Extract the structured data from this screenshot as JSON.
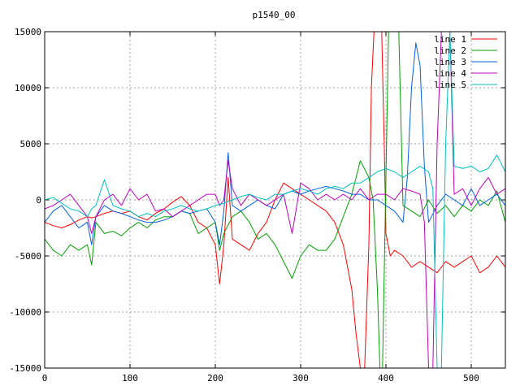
{
  "chart_data": {
    "type": "line",
    "title": "p1540_00",
    "xlabel": "",
    "ylabel": "",
    "xlim": [
      0,
      540
    ],
    "ylim": [
      -15000,
      15000
    ],
    "xticks": [
      0,
      100,
      200,
      300,
      400,
      500
    ],
    "yticks": [
      -15000,
      -10000,
      -5000,
      0,
      5000,
      10000,
      15000
    ],
    "grid": true,
    "legend_position": "top-right",
    "series": [
      {
        "name": "line 1",
        "color": "#ff0000",
        "x": [
          0,
          10,
          20,
          30,
          40,
          50,
          55,
          60,
          70,
          80,
          90,
          100,
          110,
          120,
          130,
          140,
          150,
          160,
          170,
          180,
          190,
          200,
          205,
          210,
          215,
          220,
          230,
          240,
          250,
          260,
          270,
          280,
          290,
          300,
          310,
          320,
          330,
          340,
          350,
          355,
          360,
          365,
          370,
          375,
          380,
          383,
          386,
          390,
          395,
          398,
          400,
          405,
          410,
          420,
          430,
          440,
          450,
          460,
          470,
          480,
          490,
          500,
          510,
          520,
          530,
          540
        ],
        "y": [
          -2000,
          -2300,
          -2500,
          -2200,
          -1800,
          -1500,
          -1600,
          -1500,
          -1200,
          -1000,
          -1200,
          -1000,
          -1500,
          -1800,
          -1200,
          -800,
          -200,
          300,
          -500,
          -2000,
          -2500,
          -4000,
          -7500,
          -4000,
          2000,
          -3500,
          -4000,
          -4500,
          -3000,
          -2000,
          0,
          1500,
          1000,
          500,
          0,
          -500,
          -1000,
          -2000,
          -4000,
          -6000,
          -8000,
          -12000,
          -15000,
          -15000,
          -4000,
          10000,
          15000,
          15000,
          15000,
          5000,
          -3000,
          -5000,
          -4500,
          -5000,
          -6000,
          -5500,
          -6000,
          -6500,
          -5500,
          -6000,
          -5500,
          -5000,
          -6500,
          -6000,
          -5000,
          -6000
        ]
      },
      {
        "name": "line 2",
        "color": "#00a000",
        "x": [
          0,
          10,
          20,
          30,
          40,
          50,
          55,
          60,
          70,
          80,
          90,
          100,
          110,
          120,
          130,
          140,
          150,
          160,
          170,
          180,
          190,
          200,
          205,
          210,
          220,
          230,
          240,
          250,
          260,
          270,
          280,
          290,
          300,
          310,
          320,
          330,
          340,
          350,
          360,
          370,
          380,
          385,
          390,
          393,
          396,
          400,
          403,
          406,
          410,
          415,
          420,
          430,
          440,
          450,
          460,
          470,
          480,
          490,
          500,
          510,
          520,
          530,
          540
        ],
        "y": [
          -3500,
          -4500,
          -5000,
          -4000,
          -4500,
          -4000,
          -5800,
          -2000,
          -3000,
          -2800,
          -3200,
          -2500,
          -2000,
          -2500,
          -1800,
          -1500,
          -1500,
          -1000,
          -1200,
          -3000,
          -2500,
          -2000,
          -4500,
          -3000,
          -1500,
          -1000,
          -2000,
          -3500,
          -3000,
          -4000,
          -5500,
          -7000,
          -5000,
          -4000,
          -4500,
          -4500,
          -3500,
          -1500,
          500,
          3500,
          2000,
          0,
          -8000,
          -15000,
          -15000,
          2000,
          15000,
          15000,
          15000,
          15000,
          -500,
          -1000,
          -1500,
          0,
          -1200,
          -500,
          -1500,
          -500,
          -1000,
          0,
          -500,
          800,
          -2000
        ]
      },
      {
        "name": "line 3",
        "color": "#0060e0",
        "x": [
          0,
          10,
          20,
          30,
          40,
          50,
          55,
          60,
          70,
          80,
          90,
          100,
          110,
          120,
          130,
          140,
          150,
          160,
          170,
          180,
          190,
          200,
          205,
          210,
          215,
          220,
          230,
          240,
          250,
          260,
          270,
          280,
          290,
          300,
          310,
          320,
          330,
          340,
          350,
          360,
          370,
          380,
          390,
          400,
          410,
          415,
          420,
          425,
          430,
          435,
          440,
          445,
          450,
          460,
          470,
          480,
          490,
          500,
          510,
          520,
          530,
          540
        ],
        "y": [
          -2000,
          -1000,
          -500,
          -1500,
          -2500,
          -2000,
          -4000,
          -1500,
          -500,
          -1000,
          -1200,
          -1500,
          -1800,
          -2000,
          -2000,
          -1800,
          -1500,
          -1000,
          -1200,
          -1000,
          -800,
          -2000,
          -4000,
          -1000,
          4200,
          -500,
          -1000,
          -500,
          0,
          -500,
          -800,
          500,
          800,
          500,
          800,
          1000,
          1200,
          1000,
          800,
          500,
          500,
          0,
          0,
          -500,
          -1000,
          -1500,
          -2000,
          2000,
          10000,
          14000,
          12000,
          3000,
          -2000,
          -500,
          500,
          0,
          -500,
          1000,
          -500,
          0,
          500,
          -500
        ]
      },
      {
        "name": "line 4",
        "color": "#c000c0",
        "x": [
          0,
          10,
          20,
          30,
          40,
          50,
          55,
          60,
          70,
          80,
          90,
          100,
          110,
          120,
          130,
          140,
          150,
          160,
          170,
          180,
          190,
          200,
          205,
          210,
          215,
          220,
          230,
          240,
          250,
          260,
          270,
          280,
          290,
          300,
          310,
          320,
          330,
          340,
          350,
          360,
          370,
          380,
          390,
          400,
          410,
          420,
          430,
          440,
          445,
          450,
          455,
          460,
          465,
          470,
          475,
          480,
          490,
          500,
          510,
          520,
          530,
          540
        ],
        "y": [
          -800,
          -500,
          0,
          500,
          -500,
          -1500,
          -3000,
          -1500,
          0,
          500,
          -500,
          1000,
          0,
          500,
          -1000,
          -800,
          -1500,
          -1000,
          -500,
          0,
          500,
          500,
          -500,
          0,
          3500,
          1000,
          -500,
          500,
          0,
          -500,
          0,
          500,
          -3000,
          1500,
          1000,
          0,
          500,
          0,
          500,
          0,
          1000,
          0,
          500,
          500,
          0,
          1000,
          800,
          500,
          -2000,
          -15000,
          -15000,
          5000,
          15000,
          15000,
          15000,
          500,
          1000,
          -500,
          1000,
          2000,
          500,
          1000
        ]
      },
      {
        "name": "line 5",
        "color": "#00c0c0",
        "x": [
          0,
          10,
          20,
          30,
          40,
          50,
          55,
          60,
          70,
          80,
          90,
          100,
          110,
          120,
          130,
          140,
          150,
          160,
          170,
          180,
          190,
          200,
          210,
          220,
          230,
          240,
          250,
          260,
          270,
          280,
          290,
          300,
          310,
          320,
          330,
          340,
          350,
          360,
          370,
          380,
          390,
          400,
          410,
          420,
          430,
          440,
          450,
          455,
          460,
          465,
          470,
          475,
          480,
          490,
          500,
          510,
          520,
          530,
          540
        ],
        "y": [
          0,
          200,
          -300,
          -800,
          -1000,
          -1500,
          -800,
          -500,
          1800,
          -500,
          -800,
          -1000,
          -1500,
          -1200,
          -1500,
          -1000,
          -800,
          -500,
          -800,
          -1000,
          -800,
          -500,
          -300,
          0,
          300,
          500,
          200,
          0,
          500,
          500,
          800,
          1000,
          800,
          500,
          1000,
          1200,
          1000,
          1500,
          1500,
          2000,
          2500,
          2800,
          2500,
          2000,
          2500,
          3000,
          2500,
          1000,
          -15000,
          -15000,
          5000,
          15000,
          3000,
          2800,
          3000,
          2500,
          2800,
          4000,
          2500
        ]
      }
    ]
  }
}
